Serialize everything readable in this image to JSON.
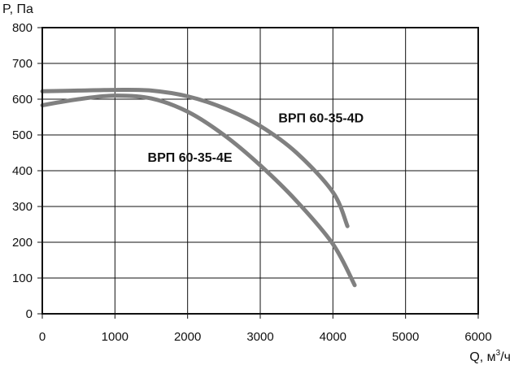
{
  "chart_data": {
    "type": "line",
    "ylabel": "P, Па",
    "xlabel_main": "Q, м",
    "xlabel_sup": "3",
    "xlabel_tail": "/ч",
    "xlim": [
      0,
      6000
    ],
    "ylim": [
      0,
      800
    ],
    "xticks": [
      0,
      1000,
      2000,
      3000,
      4000,
      5000,
      6000
    ],
    "yticks": [
      0,
      100,
      200,
      300,
      400,
      500,
      600,
      700,
      800
    ],
    "grid": true,
    "series": [
      {
        "name": "ВРП 60-35-4D",
        "color": "#808080",
        "points": [
          [
            0,
            622
          ],
          [
            500,
            624
          ],
          [
            1000,
            626
          ],
          [
            1500,
            624
          ],
          [
            2000,
            608
          ],
          [
            2500,
            575
          ],
          [
            3000,
            525
          ],
          [
            3500,
            450
          ],
          [
            4000,
            340
          ],
          [
            4200,
            245
          ]
        ]
      },
      {
        "name": "ВРП 60-35-4E",
        "color": "#808080",
        "points": [
          [
            0,
            583
          ],
          [
            500,
            600
          ],
          [
            1000,
            610
          ],
          [
            1500,
            602
          ],
          [
            2000,
            565
          ],
          [
            2500,
            500
          ],
          [
            3000,
            415
          ],
          [
            3500,
            315
          ],
          [
            4000,
            195
          ],
          [
            4300,
            80
          ]
        ]
      }
    ],
    "annotations": [
      {
        "text": "ВРП 60-35-4D",
        "x": 3250,
        "y": 535
      },
      {
        "text": "ВРП 60-35-4E",
        "x": 1450,
        "y": 425
      }
    ]
  }
}
